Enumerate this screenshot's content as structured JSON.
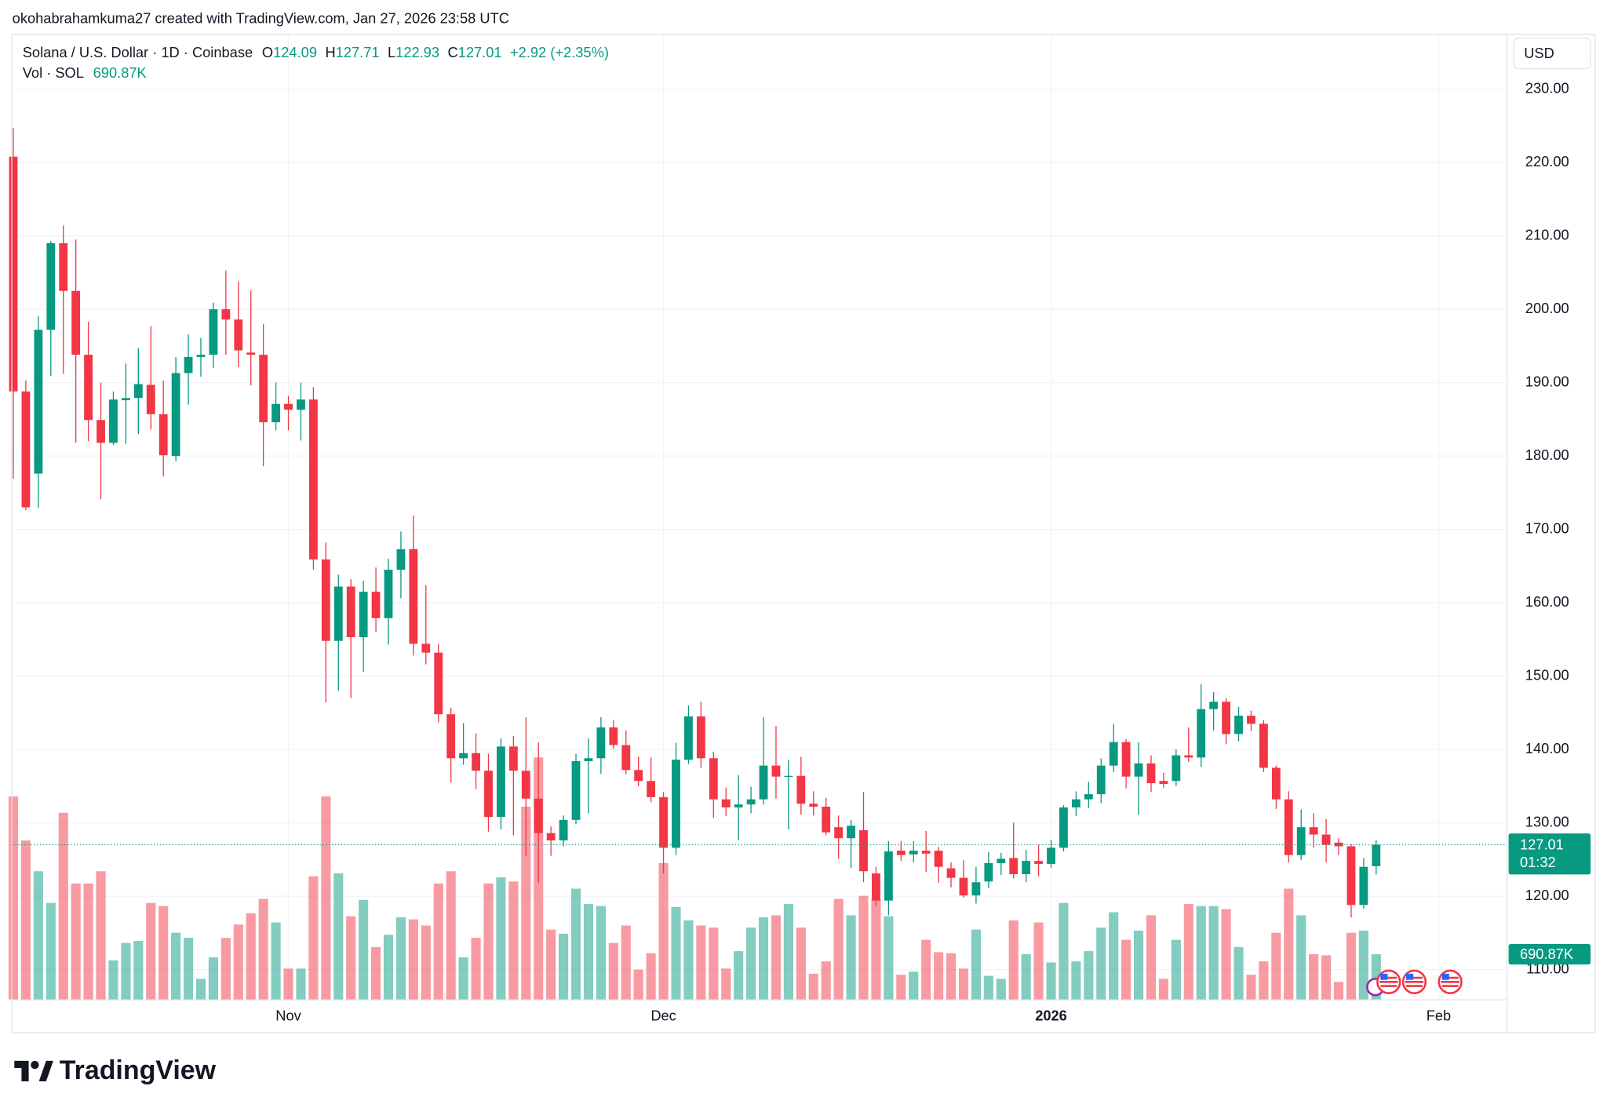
{
  "chart_data": {
    "type": "candlestick",
    "header": "okohabrahamkuma27 created with TradingView.com, Jan 27, 2026 23:58 UTC",
    "title": "Solana / U.S. Dollar · 1D · Coinbase",
    "ohlc_labels": [
      "O",
      "H",
      "L",
      "C"
    ],
    "change": "+2.92 (+2.35%)",
    "currency": "USD",
    "countdown": "01:32",
    "up_color": "#089981",
    "down_color": "#f23645",
    "open": [
      220.8,
      188.8,
      177.6,
      197.2,
      209.0,
      202.5,
      193.8,
      184.9,
      181.8,
      187.6,
      187.9,
      189.7,
      185.7,
      180.0,
      191.3,
      193.5,
      193.8,
      200.0,
      198.6,
      194.1,
      193.8,
      184.6,
      187.1,
      186.3,
      187.7,
      165.9,
      154.8,
      162.2,
      155.3,
      161.5,
      157.9,
      164.5,
      167.3,
      154.4,
      153.2,
      144.8,
      138.8,
      139.5,
      137.1,
      130.8,
      140.4,
      137.1,
      133.3,
      128.6,
      127.6,
      130.4,
      138.4,
      138.8,
      143.0,
      140.6,
      137.2,
      135.7,
      133.5,
      126.6,
      138.6,
      144.5,
      138.8,
      133.2,
      132.1,
      132.5,
      133.2,
      137.8,
      136.3,
      136.4,
      132.6,
      132.2,
      129.4,
      127.9,
      129.0,
      123.1,
      119.4,
      126.2,
      125.7,
      126.2,
      126.2,
      123.8,
      122.5,
      120.1,
      122.0,
      124.5,
      125.2,
      123.0,
      124.8,
      124.4,
      126.6,
      132.1,
      133.2,
      133.9,
      137.8,
      141.0,
      136.3,
      138.1,
      135.7,
      135.7,
      139.2,
      138.9,
      145.5,
      146.5,
      142.1,
      144.6,
      143.5,
      137.5,
      133.2,
      125.6,
      129.4,
      128.4,
      127.3,
      126.8,
      118.8,
      124.09
    ],
    "high": [
      224.7,
      190.3,
      199.1,
      209.3,
      211.4,
      209.5,
      198.3,
      190.0,
      188.8,
      192.6,
      194.7,
      197.7,
      190.3,
      193.5,
      196.6,
      196.1,
      200.9,
      205.3,
      203.8,
      202.6,
      198.0,
      190.0,
      188.2,
      190.0,
      189.4,
      168.2,
      163.8,
      163.2,
      163.0,
      164.8,
      166.0,
      169.7,
      171.9,
      162.4,
      154.4,
      145.7,
      143.6,
      142.2,
      139.4,
      141.5,
      141.8,
      144.4,
      141.0,
      129.5,
      131.0,
      139.4,
      141.5,
      144.4,
      144.0,
      142.6,
      139.0,
      138.9,
      134.2,
      140.9,
      146.0,
      146.5,
      139.7,
      134.8,
      136.5,
      134.9,
      144.4,
      143.2,
      138.6,
      139.0,
      134.3,
      133.4,
      131.0,
      130.4,
      134.2,
      124.0,
      127.5,
      127.5,
      127.5,
      128.9,
      126.7,
      124.6,
      124.9,
      124.0,
      126.0,
      125.9,
      130.0,
      126.3,
      127.0,
      127.7,
      132.4,
      134.3,
      135.6,
      138.8,
      143.5,
      141.4,
      141.0,
      139.2,
      136.8,
      140.0,
      143.0,
      148.9,
      147.8,
      147.0,
      145.8,
      145.3,
      144.0,
      137.8,
      134.3,
      131.8,
      131.3,
      130.5,
      127.9,
      127.1,
      125.2,
      127.71
    ],
    "low": [
      176.9,
      172.6,
      172.9,
      190.9,
      191.2,
      181.8,
      182.0,
      174.1,
      181.5,
      181.6,
      183.0,
      183.6,
      177.2,
      179.3,
      187.0,
      190.8,
      192.0,
      193.8,
      192.1,
      189.6,
      178.6,
      183.5,
      183.5,
      182.1,
      164.5,
      146.4,
      148.0,
      147.0,
      150.6,
      156.0,
      154.3,
      160.6,
      152.8,
      151.6,
      143.7,
      135.5,
      137.9,
      134.6,
      128.8,
      129.1,
      128.3,
      125.5,
      121.8,
      125.5,
      126.8,
      129.8,
      131.3,
      136.7,
      140.1,
      136.6,
      135.0,
      132.8,
      123.1,
      125.6,
      138.0,
      137.5,
      130.7,
      130.9,
      127.6,
      131.3,
      132.5,
      133.3,
      129.1,
      131.1,
      131.0,
      128.3,
      125.1,
      123.8,
      121.9,
      118.7,
      117.4,
      124.8,
      124.6,
      123.3,
      121.8,
      121.2,
      119.8,
      119.0,
      121.1,
      122.9,
      122.4,
      121.9,
      122.7,
      123.9,
      126.1,
      130.9,
      132.0,
      132.7,
      136.9,
      134.7,
      131.1,
      134.2,
      134.8,
      135.0,
      138.3,
      137.6,
      142.6,
      140.7,
      141.1,
      142.5,
      136.9,
      131.9,
      124.6,
      124.9,
      126.6,
      124.6,
      125.6,
      117.1,
      118.3,
      122.93
    ],
    "close": [
      188.8,
      173.0,
      197.2,
      209.0,
      202.5,
      193.8,
      184.9,
      181.8,
      187.7,
      187.9,
      189.8,
      185.7,
      180.1,
      191.3,
      193.5,
      193.8,
      200.0,
      198.6,
      194.4,
      193.8,
      184.6,
      187.1,
      186.3,
      187.7,
      165.9,
      154.8,
      162.2,
      155.3,
      161.5,
      157.9,
      164.5,
      167.3,
      154.4,
      153.2,
      144.8,
      138.8,
      139.5,
      137.1,
      130.8,
      140.4,
      137.1,
      133.3,
      128.6,
      127.6,
      130.4,
      138.4,
      138.8,
      143.0,
      140.6,
      137.2,
      135.7,
      133.5,
      126.6,
      138.6,
      144.5,
      138.8,
      133.2,
      132.1,
      132.5,
      133.2,
      137.8,
      136.3,
      136.4,
      132.6,
      132.2,
      128.7,
      127.9,
      129.6,
      123.4,
      119.4,
      126.1,
      125.6,
      126.2,
      125.8,
      124.0,
      122.5,
      120.1,
      121.9,
      124.5,
      125.1,
      123.0,
      124.8,
      124.4,
      126.6,
      132.1,
      133.2,
      133.9,
      137.8,
      141.0,
      136.3,
      138.1,
      135.4,
      135.3,
      139.2,
      138.9,
      145.5,
      146.5,
      142.1,
      144.6,
      143.5,
      137.5,
      133.2,
      125.6,
      129.4,
      128.4,
      127.0,
      126.8,
      118.8,
      124.0,
      127.01
    ],
    "volume": {
      "name": "Vol · SOL",
      "values": [
        3108,
        2433,
        1962,
        1476,
        2857,
        1774,
        1774,
        1962,
        597,
        863,
        895,
        1476,
        1429,
        1020,
        942,
        314,
        644,
        942,
        1146,
        1319,
        1538,
        1178,
        471,
        471,
        1884,
        3108,
        1931,
        1272,
        1523,
        801,
        989,
        1256,
        1225,
        1130,
        1774,
        1962,
        644,
        942,
        1774,
        1868,
        1805,
        2951,
        3704,
        1068,
        1005,
        1695,
        1460,
        1429,
        863,
        1130,
        455,
        706,
        2088,
        1413,
        1209,
        1130,
        1099,
        471,
        738,
        1099,
        1256,
        1287,
        1460,
        1099,
        392,
        581,
        1538,
        1287,
        1585,
        1538,
        1272,
        377,
        424,
        911,
        722,
        706,
        471,
        1068,
        361,
        314,
        1209,
        691,
        1178,
        565,
        1476,
        581,
        738,
        1099,
        1334,
        911,
        1052,
        1287,
        314,
        911,
        1460,
        1429,
        1429,
        1382,
        801,
        377,
        581,
        1020,
        1695,
        1287,
        691,
        675,
        267,
        1020,
        1052,
        690.87
      ],
      "value_labels": [
        null,
        null,
        null,
        null,
        null,
        null,
        null,
        null,
        null,
        null,
        null,
        null,
        null,
        null,
        null,
        null,
        null,
        null,
        null,
        null,
        null,
        null,
        null,
        null,
        null,
        null,
        null,
        null,
        null,
        null,
        null,
        null,
        null,
        null,
        null,
        null,
        null,
        null,
        null,
        null,
        null,
        null,
        null,
        null,
        null,
        null,
        null,
        null,
        null,
        null,
        null,
        null,
        null,
        null,
        null,
        null,
        null,
        null,
        null,
        null,
        null,
        null,
        null,
        null,
        null,
        null,
        null,
        null,
        null,
        null,
        null,
        null,
        null,
        null,
        null,
        null,
        null,
        null,
        null,
        null,
        null,
        null,
        null,
        null,
        null,
        null,
        null,
        null,
        null,
        null,
        null,
        null,
        null,
        null,
        null,
        null,
        null,
        null,
        null,
        null,
        null,
        null,
        null,
        null,
        null,
        null,
        null,
        null,
        null,
        "690.87K"
      ],
      "vlim": [
        0,
        14788
      ]
    },
    "xlim": [
      -0.082,
      119.43
    ],
    "xticks": [
      {
        "value": 22,
        "label": "Nov"
      },
      {
        "value": 52,
        "label": "Dec"
      },
      {
        "value": 83,
        "label": "2026"
      },
      {
        "value": 114,
        "label": "Feb"
      }
    ],
    "ylim": [
      105.94,
      237.54
    ],
    "yticks": [
      {
        "value": 110,
        "label": "110.00"
      },
      {
        "value": 120,
        "label": "120.00"
      },
      {
        "value": 130,
        "label": "130.00"
      },
      {
        "value": 140,
        "label": "140.00"
      },
      {
        "value": 150,
        "label": "150.00"
      },
      {
        "value": 160,
        "label": "160.00"
      },
      {
        "value": 170,
        "label": "170.00"
      },
      {
        "value": 180,
        "label": "180.00"
      },
      {
        "value": 190,
        "label": "190.00"
      },
      {
        "value": 200,
        "label": "200.00"
      },
      {
        "value": 210,
        "label": "210.00"
      },
      {
        "value": 220,
        "label": "220.00"
      },
      {
        "value": 230,
        "label": "230.00"
      }
    ],
    "grid": true
  },
  "branding": "TradingView"
}
